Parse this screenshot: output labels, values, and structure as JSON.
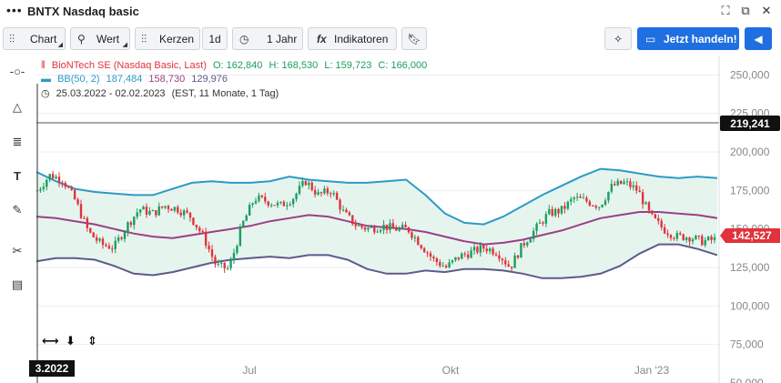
{
  "window": {
    "title": "BNTX Nasdaq basic"
  },
  "toolbar": {
    "chart_label": "Chart",
    "value_label": "Wert",
    "candles_label": "Kerzen",
    "interval_label": "1d",
    "range_label": "1 Jahr",
    "indicators_label": "Indikatoren",
    "trade_label": "Jetzt handeln!"
  },
  "legend": {
    "series": "BioNTech SE (Nasdaq Basic, Last)",
    "open": "O: 162,840",
    "high": "H: 168,530",
    "low": "L: 159,723",
    "close": "C: 166,000",
    "bb_label": "BB(50, 2)",
    "bb_upper": "187,484",
    "bb_mid": "158,730",
    "bb_lower": "129,976",
    "date_range": "25.03.2022 - 02.02.2023",
    "date_note": "(EST, 11 Monate, 1 Tag)"
  },
  "price_labels": {
    "crosshair": "219,241",
    "last": "142,527"
  },
  "colors": {
    "up": "#1a9e5f",
    "down": "#e0333c",
    "bb_upper": "#2b9bc7",
    "bb_mid": "#9b3f86",
    "bb_lower": "#5e5a8a",
    "band_fill": "#e6f4ee",
    "accent": "#1f6fe0"
  },
  "chart_data": {
    "type": "candlestick",
    "yticks": [
      "250,000",
      "225,000",
      "200,000",
      "175,000",
      "150,000",
      "125,000",
      "100,000",
      "75,000",
      "50,000"
    ],
    "ylim": [
      50000,
      262000
    ],
    "xticks": [
      "Jul",
      "Okt",
      "Jan '23"
    ],
    "x_start_label": "3.2022",
    "bb_upper": [
      187,
      181,
      176,
      174,
      173,
      172,
      172,
      176,
      180,
      181,
      180,
      180,
      181,
      184,
      182,
      181,
      180,
      180,
      181,
      182,
      172,
      160,
      154,
      153,
      158,
      165,
      172,
      178,
      184,
      189,
      188,
      186,
      184,
      183,
      184,
      183
    ],
    "bb_mid": [
      158,
      157,
      155,
      153,
      150,
      147,
      145,
      144,
      146,
      148,
      150,
      152,
      155,
      157,
      159,
      158,
      155,
      152,
      151,
      150,
      148,
      145,
      142,
      140,
      141,
      143,
      146,
      149,
      153,
      157,
      159,
      161,
      161,
      160,
      159,
      157
    ],
    "bb_lower": [
      129,
      131,
      131,
      130,
      126,
      121,
      120,
      122,
      125,
      128,
      130,
      131,
      132,
      131,
      133,
      133,
      130,
      124,
      121,
      121,
      123,
      122,
      124,
      124,
      123,
      121,
      118,
      118,
      119,
      121,
      126,
      134,
      140,
      140,
      137,
      133
    ],
    "closes": [
      175,
      185,
      182,
      168,
      148,
      140,
      138,
      152,
      163,
      160,
      165,
      163,
      158,
      145,
      126,
      124,
      152,
      170,
      168,
      165,
      170,
      181,
      172,
      175,
      160,
      152,
      150,
      152,
      150,
      150,
      140,
      130,
      125,
      132,
      135,
      138,
      135,
      125,
      140,
      150,
      160,
      162,
      170,
      168,
      165,
      178,
      180,
      175,
      158,
      150,
      145,
      145,
      142,
      143
    ]
  }
}
